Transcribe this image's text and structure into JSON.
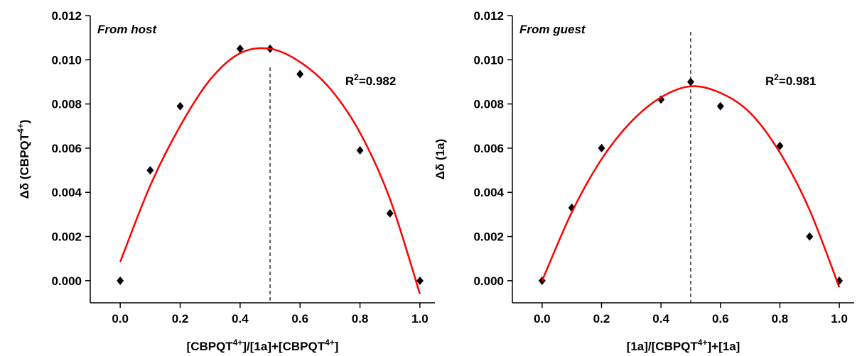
{
  "chart_data": [
    {
      "type": "scatter",
      "annotation": "From host",
      "fit_label": [
        "R",
        "2",
        "=0.982"
      ],
      "x_label": [
        "[CBPQT",
        "4+",
        "]/[1a]+[CBPQT",
        "4+",
        "]"
      ],
      "y_label": [
        "Δδ (CBPQT",
        "4+",
        ")"
      ],
      "xlim": [
        -0.1,
        1.05
      ],
      "ylim": [
        -0.001,
        0.012
      ],
      "xticks": [
        {
          "value": 0,
          "label": "0.0"
        },
        0.2,
        0.4,
        0.6,
        0.8,
        {
          "value": 1,
          "label": "1.0"
        }
      ],
      "yticks": [
        {
          "value": 0,
          "label": "0.000"
        },
        {
          "value": 0.002,
          "label": "0.002"
        },
        {
          "value": 0.004,
          "label": "0.004"
        },
        {
          "value": 0.006,
          "label": "0.006"
        },
        {
          "value": 0.008,
          "label": "0.008"
        },
        {
          "value": 0.01,
          "label": "0.010"
        },
        {
          "value": 0.012,
          "label": "0.012"
        }
      ],
      "vline": 0.5,
      "series": [
        {
          "type": "scatter",
          "color": "#000000",
          "x": [
            0,
            0.1,
            0.2,
            0.4,
            0.5,
            0.6,
            0.8,
            0.9,
            1.0
          ],
          "values": [
            0,
            0.005,
            0.0079,
            0.0105,
            0.0105,
            0.00935,
            0.0059,
            0.00305,
            0
          ]
        },
        {
          "type": "line",
          "color": "#ff0000",
          "x": [
            0,
            0.1,
            0.2,
            0.3,
            0.4,
            0.5,
            0.6,
            0.7,
            0.8,
            0.9,
            1.0
          ],
          "values": [
            0.00085,
            0.0043,
            0.007,
            0.0091,
            0.0103,
            0.0105,
            0.0099,
            0.0087,
            0.0067,
            0.0037,
            -0.0006
          ]
        }
      ]
    },
    {
      "type": "scatter",
      "annotation": "From guest",
      "fit_label": [
        "R",
        "2",
        "=0.981"
      ],
      "x_label": [
        "[1a]/[CBPQT",
        "4+",
        "]+[1a]"
      ],
      "y_label": [
        "Δδ (1a)"
      ],
      "xlim": [
        -0.1,
        1.05
      ],
      "ylim": [
        -0.001,
        0.012
      ],
      "xticks": [
        {
          "value": 0,
          "label": "0.0"
        },
        0.2,
        0.4,
        0.6,
        0.8,
        {
          "value": 1,
          "label": "1.0"
        }
      ],
      "yticks": [
        {
          "value": 0,
          "label": "0.000"
        },
        {
          "value": 0.002,
          "label": "0.002"
        },
        {
          "value": 0.004,
          "label": "0.004"
        },
        {
          "value": 0.006,
          "label": "0.006"
        },
        {
          "value": 0.008,
          "label": "0.008"
        },
        {
          "value": 0.01,
          "label": "0.010"
        },
        {
          "value": 0.012,
          "label": "0.012"
        }
      ],
      "vline": 0.5,
      "series": [
        {
          "type": "scatter",
          "color": "#000000",
          "x": [
            0,
            0.1,
            0.2,
            0.4,
            0.5,
            0.6,
            0.8,
            0.9,
            1.0
          ],
          "values": [
            0,
            0.0033,
            0.006,
            0.0082,
            0.009,
            0.0079,
            0.0061,
            0.002,
            0
          ]
        },
        {
          "type": "line",
          "color": "#ff0000",
          "x": [
            0,
            0.1,
            0.2,
            0.3,
            0.4,
            0.5,
            0.6,
            0.7,
            0.8,
            0.9,
            1.0
          ],
          "values": [
            0,
            0.0031,
            0.0055,
            0.0072,
            0.0083,
            0.0088,
            0.0085,
            0.0076,
            0.0058,
            0.0032,
            -0.0003
          ]
        }
      ]
    }
  ]
}
